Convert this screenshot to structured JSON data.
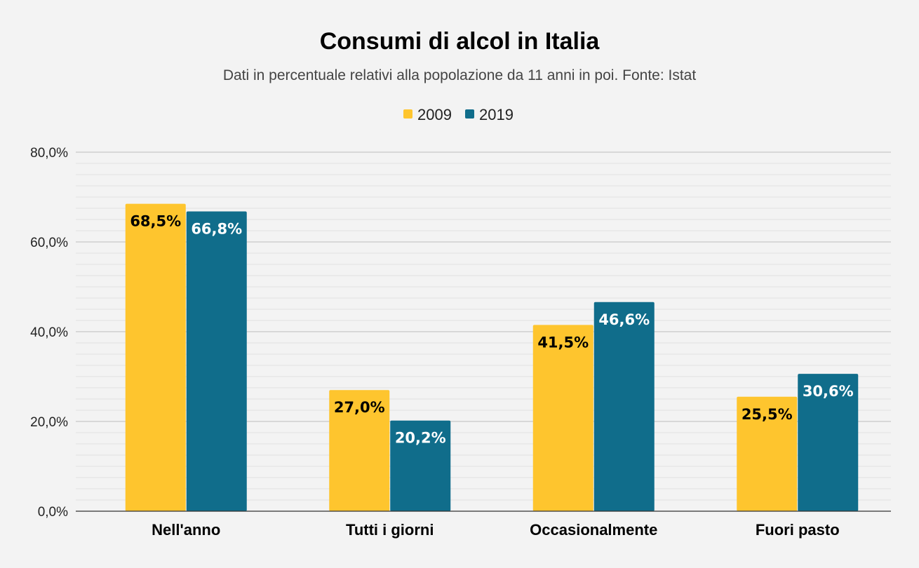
{
  "chart_data": {
    "type": "bar",
    "title": "Consumi di alcol in Italia",
    "subtitle": "Dati in percentuale relativi alla popolazione da 11 anni in poi. Fonte: Istat",
    "categories": [
      "Nell'anno",
      "Tutti i giorni",
      "Occasionalmente",
      "Fuori pasto"
    ],
    "series": [
      {
        "name": "2009",
        "color": "#fec52e",
        "label_color": "#000000",
        "values": [
          68.5,
          27.0,
          41.5,
          25.5
        ],
        "labels": [
          "68,5%",
          "27,0%",
          "41,5%",
          "25,5%"
        ]
      },
      {
        "name": "2019",
        "color": "#106d8b",
        "label_color": "#ffffff",
        "values": [
          66.8,
          20.2,
          46.6,
          30.6
        ],
        "labels": [
          "66,8%",
          "20,2%",
          "46,6%",
          "30,6%"
        ]
      }
    ],
    "ylim": [
      0,
      80
    ],
    "yticks": [
      0,
      20,
      40,
      60,
      80
    ],
    "ytick_labels": [
      "0,0%",
      "20,0%",
      "40,0%",
      "60,0%",
      "80,0%"
    ],
    "xlabel": "",
    "ylabel": "",
    "legend": "top-center",
    "grid": true
  }
}
